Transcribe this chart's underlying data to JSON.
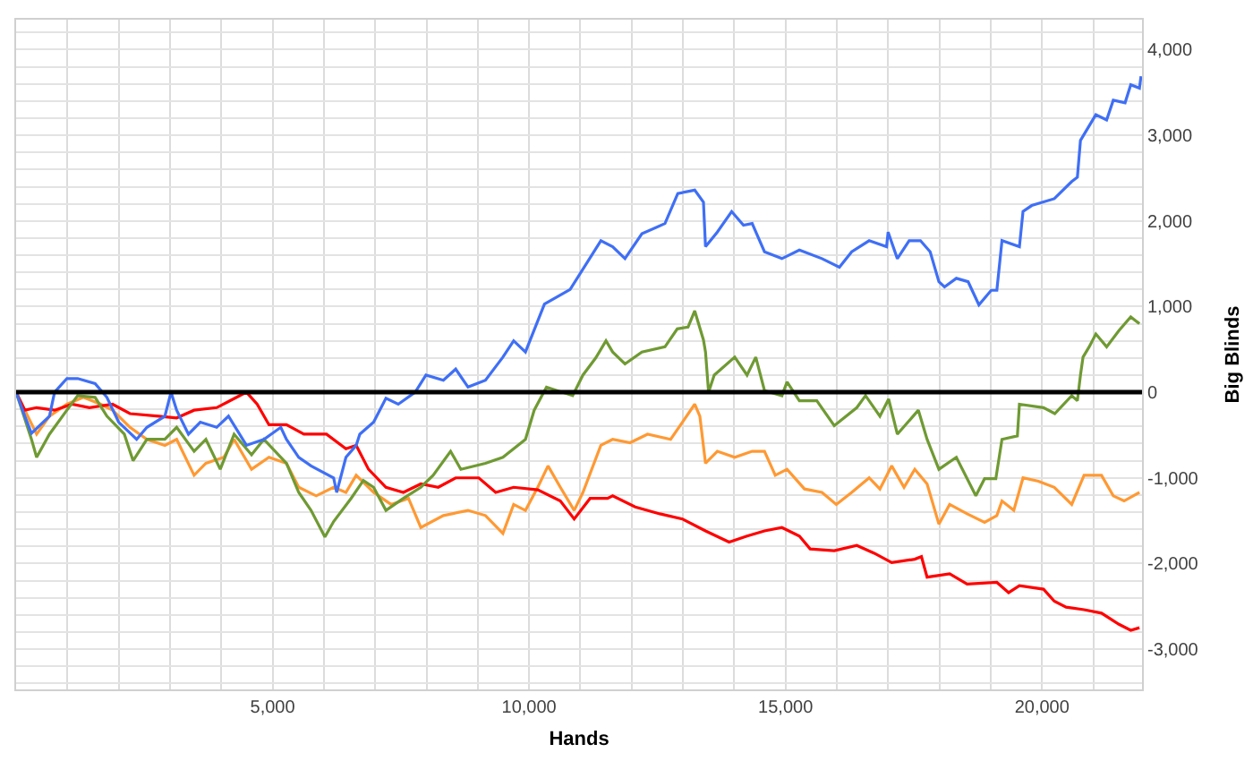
{
  "chart_data": {
    "type": "line",
    "xlabel": "Hands",
    "ylabel": "Big Blinds",
    "xlim": [
      0,
      21950
    ],
    "ylim": [
      -3470,
      4350
    ],
    "xticks": [
      {
        "value": 1000,
        "label": null
      },
      {
        "value": 2000,
        "label": null
      },
      {
        "value": 3000,
        "label": null
      },
      {
        "value": 4000,
        "label": null
      },
      {
        "value": 5000,
        "label": "5,000"
      },
      {
        "value": 6000,
        "label": null
      },
      {
        "value": 7000,
        "label": null
      },
      {
        "value": 8000,
        "label": null
      },
      {
        "value": 9000,
        "label": null
      },
      {
        "value": 10000,
        "label": "10,000"
      },
      {
        "value": 11000,
        "label": null
      },
      {
        "value": 12000,
        "label": null
      },
      {
        "value": 13000,
        "label": null
      },
      {
        "value": 14000,
        "label": null
      },
      {
        "value": 15000,
        "label": "15,000"
      },
      {
        "value": 16000,
        "label": null
      },
      {
        "value": 17000,
        "label": null
      },
      {
        "value": 18000,
        "label": null
      },
      {
        "value": 19000,
        "label": null
      },
      {
        "value": 20000,
        "label": "20,000"
      },
      {
        "value": 21000,
        "label": null
      }
    ],
    "yticks": [
      {
        "value": -3400,
        "label": null
      },
      {
        "value": -3200,
        "label": null
      },
      {
        "value": -3000,
        "label": "-3,000"
      },
      {
        "value": -2800,
        "label": null
      },
      {
        "value": -2600,
        "label": null
      },
      {
        "value": -2400,
        "label": null
      },
      {
        "value": -2200,
        "label": null
      },
      {
        "value": -2000,
        "label": "-2,000"
      },
      {
        "value": -1800,
        "label": null
      },
      {
        "value": -1600,
        "label": null
      },
      {
        "value": -1400,
        "label": null
      },
      {
        "value": -1200,
        "label": null
      },
      {
        "value": -1000,
        "label": "-1,000"
      },
      {
        "value": -800,
        "label": null
      },
      {
        "value": -600,
        "label": null
      },
      {
        "value": -400,
        "label": null
      },
      {
        "value": -200,
        "label": null
      },
      0,
      {
        "value": 200,
        "label": null
      },
      {
        "value": 400,
        "label": null
      },
      {
        "value": 600,
        "label": null
      },
      {
        "value": 800,
        "label": null
      },
      {
        "value": 1000,
        "label": "1,000"
      },
      {
        "value": 1200,
        "label": null
      },
      {
        "value": 1400,
        "label": null
      },
      {
        "value": 1600,
        "label": null
      },
      {
        "value": 1800,
        "label": null
      },
      {
        "value": 2000,
        "label": "2,000"
      },
      {
        "value": 2200,
        "label": null
      },
      {
        "value": 2400,
        "label": null
      },
      {
        "value": 2600,
        "label": null
      },
      {
        "value": 2800,
        "label": null
      },
      {
        "value": 3000,
        "label": "3,000"
      },
      {
        "value": 3200,
        "label": null
      },
      {
        "value": 3400,
        "label": null
      },
      {
        "value": 3600,
        "label": null
      },
      {
        "value": 3800,
        "label": null
      },
      {
        "value": 4000,
        "label": "4,000"
      },
      {
        "value": 4200,
        "label": null
      }
    ],
    "grid": true,
    "marker": "none",
    "line_style": "solid",
    "ref_lines": [
      {
        "axis": "y",
        "value": 0,
        "color": "#000000"
      }
    ],
    "series": [
      {
        "color": "#ff9933",
        "x": [
          0,
          170,
          400,
          650,
          990,
          1310,
          1650,
          1880,
          2220,
          2550,
          2900,
          3130,
          3470,
          3700,
          4050,
          4250,
          4590,
          4930,
          5270,
          5510,
          5850,
          6190,
          6430,
          6630,
          6970,
          7310,
          7650,
          7890,
          8330,
          8810,
          9150,
          9490,
          9700,
          9930,
          10170,
          10370,
          10610,
          10880,
          11050,
          11400,
          11630,
          11970,
          12310,
          12760,
          12990,
          13230,
          13330,
          13440,
          13670,
          14010,
          14350,
          14590,
          14800,
          15030,
          15370,
          15710,
          15990,
          16290,
          16630,
          16840,
          17070,
          17310,
          17520,
          17760,
          17990,
          18200,
          18540,
          18880,
          19120,
          19220,
          19450,
          19630,
          19930,
          20240,
          20580,
          20820,
          21160,
          21390,
          21600,
          21900
        ],
        "values": [
          0,
          -210,
          -490,
          -280,
          -140,
          -60,
          -140,
          -210,
          -410,
          -550,
          -620,
          -550,
          -970,
          -830,
          -760,
          -550,
          -900,
          -760,
          -830,
          -1110,
          -1210,
          -1110,
          -1170,
          -970,
          -1170,
          -1310,
          -1240,
          -1580,
          -1440,
          -1380,
          -1440,
          -1650,
          -1310,
          -1380,
          -1110,
          -860,
          -1110,
          -1380,
          -1170,
          -620,
          -550,
          -590,
          -490,
          -550,
          -350,
          -140,
          -280,
          -830,
          -690,
          -760,
          -690,
          -690,
          -970,
          -900,
          -1130,
          -1170,
          -1310,
          -1170,
          -1000,
          -1130,
          -860,
          -1110,
          -900,
          -1070,
          -1540,
          -1310,
          -1420,
          -1520,
          -1440,
          -1270,
          -1380,
          -1000,
          -1040,
          -1110,
          -1310,
          -970,
          -970,
          -1210,
          -1270,
          -1170
        ]
      },
      {
        "color": "#ff0000",
        "x": [
          0,
          170,
          400,
          750,
          1090,
          1430,
          1880,
          2220,
          2780,
          3130,
          3470,
          3910,
          4490,
          4700,
          4930,
          5270,
          5610,
          6050,
          6430,
          6630,
          6870,
          7210,
          7550,
          7890,
          8230,
          8570,
          9020,
          9350,
          9700,
          10170,
          10610,
          10880,
          11190,
          11530,
          11630,
          12070,
          12550,
          12990,
          13440,
          13900,
          14250,
          14590,
          14930,
          15270,
          15480,
          15950,
          16390,
          16730,
          17070,
          17520,
          17650,
          17760,
          18200,
          18540,
          19120,
          19350,
          19560,
          20030,
          20240,
          20470,
          20820,
          21160,
          21500,
          21730,
          21900
        ],
        "values": [
          0,
          -210,
          -180,
          -210,
          -140,
          -180,
          -140,
          -250,
          -280,
          -300,
          -210,
          -180,
          0,
          -140,
          -380,
          -380,
          -490,
          -490,
          -660,
          -620,
          -900,
          -1110,
          -1170,
          -1070,
          -1110,
          -1000,
          -1000,
          -1170,
          -1110,
          -1140,
          -1270,
          -1480,
          -1240,
          -1240,
          -1210,
          -1340,
          -1420,
          -1480,
          -1620,
          -1750,
          -1680,
          -1620,
          -1580,
          -1680,
          -1830,
          -1850,
          -1790,
          -1880,
          -1990,
          -1950,
          -1920,
          -2160,
          -2120,
          -2240,
          -2220,
          -2340,
          -2260,
          -2300,
          -2440,
          -2510,
          -2540,
          -2580,
          -2710,
          -2780,
          -2750
        ]
      },
      {
        "color": "#6f9a33",
        "x": [
          0,
          300,
          400,
          650,
          990,
          1200,
          1540,
          1770,
          2110,
          2280,
          2550,
          2900,
          3130,
          3470,
          3700,
          3980,
          4250,
          4590,
          4830,
          5270,
          5510,
          5750,
          6020,
          6190,
          6530,
          6770,
          6970,
          7210,
          7550,
          7890,
          8130,
          8470,
          8670,
          9150,
          9490,
          9930,
          10100,
          10340,
          10850,
          11050,
          11300,
          11500,
          11630,
          11870,
          12200,
          12650,
          12890,
          13100,
          13230,
          13400,
          13440,
          13500,
          13610,
          14010,
          14250,
          14420,
          14590,
          14930,
          15030,
          15270,
          15610,
          15950,
          16390,
          16560,
          16840,
          17010,
          17180,
          17590,
          17760,
          17990,
          18330,
          18710,
          18880,
          19100,
          19220,
          19520,
          19560,
          20030,
          20250,
          20580,
          20690,
          20750,
          20800,
          20920,
          21050,
          21260,
          21500,
          21730,
          21900
        ],
        "values": [
          0,
          -550,
          -760,
          -490,
          -210,
          -40,
          -60,
          -280,
          -490,
          -800,
          -550,
          -550,
          -410,
          -690,
          -550,
          -900,
          -490,
          -730,
          -550,
          -830,
          -1170,
          -1380,
          -1690,
          -1510,
          -1240,
          -1030,
          -1110,
          -1380,
          -1240,
          -1110,
          -970,
          -690,
          -900,
          -830,
          -760,
          -550,
          -210,
          60,
          -40,
          200,
          400,
          600,
          470,
          330,
          470,
          530,
          740,
          760,
          950,
          610,
          470,
          0,
          200,
          410,
          200,
          410,
          20,
          -40,
          120,
          -100,
          -100,
          -390,
          -180,
          -40,
          -280,
          -80,
          -490,
          -210,
          -550,
          -900,
          -760,
          -1210,
          -1010,
          -1010,
          -550,
          -510,
          -140,
          -180,
          -250,
          -40,
          -100,
          200,
          410,
          530,
          680,
          530,
          720,
          880,
          800
        ]
      },
      {
        "color": "#3f6ff5",
        "x": [
          0,
          170,
          300,
          650,
          750,
          990,
          1200,
          1540,
          1770,
          2000,
          2350,
          2550,
          2900,
          3020,
          3130,
          3360,
          3590,
          3910,
          4140,
          4490,
          4830,
          5160,
          5270,
          5510,
          5750,
          6190,
          6250,
          6430,
          6630,
          6700,
          6970,
          7210,
          7450,
          7780,
          7990,
          8330,
          8570,
          8810,
          9150,
          9490,
          9700,
          9930,
          10300,
          10800,
          11400,
          11630,
          11870,
          12200,
          12650,
          12900,
          13230,
          13400,
          13440,
          13670,
          13950,
          14180,
          14350,
          14590,
          14930,
          15270,
          15710,
          16050,
          16290,
          16630,
          16970,
          17000,
          17180,
          17410,
          17630,
          17820,
          17990,
          18100,
          18330,
          18560,
          18770,
          19010,
          19120,
          19220,
          19560,
          19630,
          19800,
          20240,
          20580,
          20690,
          20750,
          21050,
          21260,
          21390,
          21620,
          21730,
          21900,
          21930
        ],
        "values": [
          0,
          -280,
          -480,
          -280,
          0,
          160,
          160,
          100,
          -60,
          -350,
          -550,
          -410,
          -280,
          0,
          -210,
          -490,
          -350,
          -410,
          -280,
          -620,
          -550,
          -410,
          -550,
          -760,
          -860,
          -1000,
          -1170,
          -760,
          -620,
          -490,
          -350,
          -70,
          -140,
          0,
          200,
          140,
          270,
          60,
          140,
          410,
          600,
          470,
          1030,
          1200,
          1770,
          1700,
          1560,
          1850,
          1970,
          2320,
          2360,
          2220,
          1700,
          1870,
          2110,
          1950,
          1970,
          1640,
          1560,
          1660,
          1560,
          1460,
          1640,
          1770,
          1700,
          1870,
          1560,
          1770,
          1770,
          1640,
          1290,
          1230,
          1330,
          1290,
          1020,
          1190,
          1190,
          1770,
          1700,
          2110,
          2180,
          2260,
          2460,
          2510,
          2940,
          3240,
          3180,
          3410,
          3380,
          3590,
          3550,
          3690
        ]
      }
    ]
  }
}
